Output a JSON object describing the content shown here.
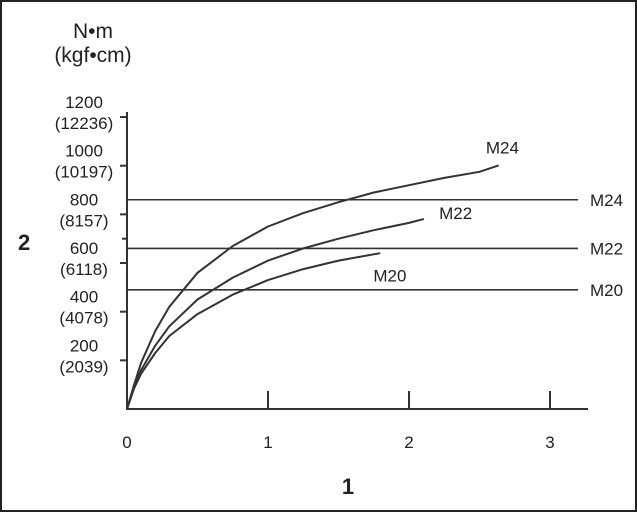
{
  "chart_data": {
    "type": "line",
    "unit_label_1": "N•m",
    "unit_label_2": "(kgf•cm)",
    "xlabel": "1",
    "ylabel": "2",
    "xlim": [
      0,
      3.3
    ],
    "ylim": [
      0,
      1200
    ],
    "x_ticks": [
      {
        "value": 0,
        "label": "0"
      },
      {
        "value": 1,
        "label": "1"
      },
      {
        "value": 2,
        "label": "2"
      },
      {
        "value": 3,
        "label": "3"
      }
    ],
    "y_ticks": [
      {
        "value": 200,
        "label": "200",
        "sublabel": "(2039)"
      },
      {
        "value": 400,
        "label": "400",
        "sublabel": "(4078)"
      },
      {
        "value": 600,
        "label": "600",
        "sublabel": "(6118)"
      },
      {
        "value": 800,
        "label": "800",
        "sublabel": "(8157)"
      },
      {
        "value": 1000,
        "label": "1000",
        "sublabel": "(10197)"
      },
      {
        "value": 1200,
        "label": "1200",
        "sublabel": "(12236)"
      }
    ],
    "series": [
      {
        "name": "M24",
        "x": [
          0,
          0.05,
          0.1,
          0.2,
          0.3,
          0.5,
          0.75,
          1.0,
          1.25,
          1.5,
          1.75,
          2.0,
          2.25,
          2.5,
          2.63
        ],
        "y": [
          0,
          100,
          190,
          320,
          420,
          560,
          670,
          750,
          805,
          850,
          890,
          920,
          950,
          975,
          1000
        ]
      },
      {
        "name": "M22",
        "x": [
          0,
          0.05,
          0.1,
          0.2,
          0.3,
          0.5,
          0.75,
          1.0,
          1.25,
          1.5,
          1.75,
          2.0,
          2.1
        ],
        "y": [
          0,
          90,
          160,
          260,
          340,
          450,
          540,
          610,
          660,
          700,
          735,
          765,
          780
        ]
      },
      {
        "name": "M20",
        "x": [
          0,
          0.05,
          0.1,
          0.2,
          0.3,
          0.5,
          0.75,
          1.0,
          1.25,
          1.5,
          1.79
        ],
        "y": [
          0,
          85,
          145,
          230,
          300,
          390,
          470,
          530,
          575,
          610,
          640
        ]
      }
    ],
    "reference_lines": [
      {
        "name": "M24",
        "y": 860
      },
      {
        "name": "M22",
        "y": 660
      },
      {
        "name": "M20",
        "y": 490
      }
    ]
  }
}
